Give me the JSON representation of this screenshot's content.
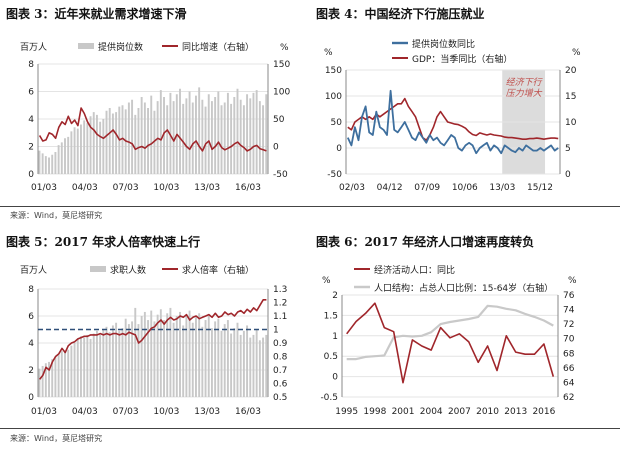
{
  "source_top": "来源：Wind，莫尼塔研究",
  "source_bottom": "来源：Wind，莫尼塔研究",
  "chart_data": [
    {
      "id": "c3",
      "type": "bar+line",
      "title": "图表 3：近年来就业需求增速下滑",
      "left_unit": "百万人",
      "right_unit": "%",
      "legend": [
        "提供岗位数",
        "同比增速（右轴）"
      ],
      "x_ticks": [
        "01/03",
        "04/03",
        "07/03",
        "10/03",
        "13/03",
        "16/03"
      ],
      "ylim_left": [
        0,
        8
      ],
      "yticks_left": [
        0,
        2,
        4,
        6,
        8
      ],
      "ylim_right": [
        -50,
        150
      ],
      "yticks_right": [
        -50,
        0,
        50,
        100,
        150
      ],
      "series": [
        {
          "name": "提供岗位数",
          "axis": "left",
          "kind": "bar",
          "values": [
            1.7,
            1.5,
            1.3,
            1.2,
            1.4,
            1.6,
            2.1,
            2.3,
            2.6,
            2.7,
            3.1,
            3.4,
            3.3,
            3.6,
            3.9,
            3.7,
            4.2,
            4.5,
            4.3,
            3.8,
            4.0,
            4.6,
            4.8,
            4.4,
            4.5,
            4.9,
            5.0,
            4.7,
            5.2,
            5.4,
            4.3,
            4.8,
            5.6,
            5.2,
            4.8,
            5.7,
            4.6,
            5.3,
            6.1,
            5.6,
            5.0,
            5.9,
            5.3,
            5.8,
            6.2,
            5.1,
            5.5,
            6.0,
            5.2,
            5.7,
            6.3,
            5.4,
            4.9,
            5.8,
            5.3,
            5.6,
            6.0,
            5.0,
            5.2,
            5.9,
            5.1,
            5.6,
            6.2,
            5.4,
            5.0,
            5.8,
            5.5,
            5.9,
            6.1,
            5.3,
            5.0,
            5.8
          ]
        },
        {
          "name": "同比增速（右轴）",
          "axis": "right",
          "kind": "line",
          "values": [
            20,
            10,
            12,
            25,
            22,
            15,
            35,
            45,
            40,
            55,
            42,
            48,
            38,
            70,
            60,
            45,
            35,
            30,
            22,
            18,
            15,
            20,
            25,
            30,
            22,
            12,
            15,
            10,
            8,
            5,
            -5,
            -2,
            0,
            -3,
            2,
            5,
            10,
            15,
            12,
            25,
            30,
            20,
            10,
            22,
            15,
            8,
            0,
            -5,
            5,
            10,
            0,
            -8,
            5,
            10,
            -5,
            0,
            8,
            -2,
            -6,
            -3,
            0,
            5,
            8,
            2,
            -2,
            -8,
            -5,
            0,
            2,
            -4,
            -6,
            -8
          ]
        }
      ]
    },
    {
      "id": "c4",
      "type": "line",
      "title": "图表 4：中国经济下行施压就业",
      "left_unit": "%",
      "right_unit": "%",
      "legend": [
        "提供岗位数同比",
        "GDP：当季同比（右轴）"
      ],
      "annotation": "经济下行\n压力增大",
      "x_ticks": [
        "02/03",
        "04/12",
        "07/09",
        "10/06",
        "13/03",
        "15/12"
      ],
      "ylim_left": [
        -50,
        150
      ],
      "yticks_left": [
        -50,
        0,
        50,
        100,
        150
      ],
      "ylim_right": [
        0,
        20
      ],
      "yticks_right": [
        0,
        5,
        10,
        15,
        20
      ],
      "series": [
        {
          "name": "提供岗位数同比",
          "axis": "left",
          "kind": "line",
          "values": [
            20,
            5,
            40,
            15,
            60,
            80,
            30,
            25,
            70,
            40,
            35,
            25,
            110,
            35,
            30,
            40,
            50,
            35,
            20,
            15,
            30,
            20,
            10,
            25,
            15,
            20,
            10,
            5,
            15,
            25,
            20,
            0,
            -5,
            5,
            10,
            5,
            -10,
            0,
            5,
            10,
            -5,
            5,
            0,
            -10,
            5,
            0,
            -5,
            -8,
            0,
            -5,
            5,
            0,
            -5,
            -5,
            0,
            -5,
            0,
            5,
            -5,
            0
          ]
        },
        {
          "name": "GDP：当季同比（右轴）",
          "axis": "right",
          "kind": "line",
          "values": [
            9,
            8.5,
            10,
            10.5,
            11,
            10.5,
            11,
            10.5,
            11.5,
            11,
            11.5,
            12,
            12.5,
            13,
            13.5,
            13.5,
            14.5,
            13,
            12,
            11,
            9,
            7,
            6.5,
            7.5,
            9,
            11,
            12,
            11,
            10,
            9.8,
            9.6,
            9.5,
            9.2,
            8.8,
            8.1,
            7.6,
            7.4,
            7.9,
            7.7,
            7.5,
            7.7,
            7.5,
            7.4,
            7.3,
            7.1,
            7.0,
            7.0,
            6.9,
            6.8,
            6.7,
            6.7,
            6.8,
            6.8,
            6.9,
            6.8,
            6.7,
            6.8,
            6.9,
            6.9,
            6.8
          ]
        }
      ]
    },
    {
      "id": "c5",
      "type": "bar+line",
      "title": "图表 5：2017 年求人倍率快速上行",
      "left_unit": "百万人",
      "legend": [
        "求职人数",
        "求人倍率（右轴）"
      ],
      "x_ticks": [
        "01/03",
        "04/03",
        "07/03",
        "10/03",
        "13/03",
        "16/03"
      ],
      "ylim_left": [
        0,
        8
      ],
      "yticks_left": [
        0,
        2,
        4,
        6,
        8
      ],
      "ylim_right": [
        0.5,
        1.3
      ],
      "yticks_right": [
        0.5,
        0.6,
        0.7,
        0.8,
        0.9,
        1.0,
        1.1,
        1.2,
        1.3
      ],
      "reference_line": 1.0,
      "series": [
        {
          "name": "求职人数",
          "axis": "left",
          "kind": "bar",
          "values": [
            2.1,
            2.3,
            2.5,
            2.6,
            2.8,
            3.0,
            3.2,
            3.4,
            3.3,
            3.5,
            3.8,
            4.0,
            4.3,
            4.5,
            4.4,
            4.6,
            4.3,
            4.7,
            4.9,
            4.6,
            5.0,
            5.2,
            4.8,
            5.3,
            5.5,
            4.9,
            5.1,
            5.8,
            5.4,
            5.6,
            6.6,
            5.4,
            6.0,
            6.3,
            5.7,
            6.4,
            5.6,
            6.1,
            6.5,
            5.7,
            6.2,
            6.6,
            5.5,
            6.0,
            6.3,
            5.3,
            6.1,
            6.4,
            5.5,
            5.9,
            6.2,
            5.2,
            5.7,
            6.0,
            5.1,
            5.6,
            5.8,
            4.9,
            5.4,
            5.7,
            4.7,
            5.1,
            5.5,
            4.6,
            4.9,
            5.3,
            4.4,
            4.6,
            5.0,
            4.2,
            4.4,
            4.6
          ]
        },
        {
          "name": "求人倍率（右轴）",
          "axis": "right",
          "kind": "line",
          "values": [
            0.63,
            0.66,
            0.72,
            0.7,
            0.76,
            0.8,
            0.82,
            0.86,
            0.83,
            0.88,
            0.9,
            0.91,
            0.93,
            0.94,
            0.95,
            0.95,
            0.96,
            0.96,
            0.96,
            0.97,
            0.96,
            0.97,
            0.96,
            0.97,
            0.97,
            0.96,
            0.97,
            0.96,
            0.98,
            0.97,
            0.96,
            0.9,
            0.92,
            0.95,
            0.98,
            1.01,
            1.02,
            1.05,
            1.07,
            1.04,
            1.07,
            1.09,
            1.07,
            1.08,
            1.1,
            1.09,
            1.11,
            1.07,
            1.09,
            1.1,
            1.08,
            1.09,
            1.1,
            1.11,
            1.09,
            1.12,
            1.09,
            1.1,
            1.13,
            1.11,
            1.12,
            1.1,
            1.13,
            1.14,
            1.12,
            1.15,
            1.13,
            1.16,
            1.14,
            1.18,
            1.22,
            1.22
          ]
        }
      ]
    },
    {
      "id": "c6",
      "type": "line",
      "title": "图表 6：2017 年经济人口增速再度转负",
      "left_unit": "%",
      "right_unit": "%",
      "legend": [
        "经济活动人口：同比",
        "人口结构：占总人口比例：15-64岁（右轴）"
      ],
      "x": [
        1995,
        1996,
        1997,
        1998,
        1999,
        2000,
        2001,
        2002,
        2003,
        2004,
        2005,
        2006,
        2007,
        2008,
        2009,
        2010,
        2011,
        2012,
        2013,
        2014,
        2015,
        2016,
        2017
      ],
      "x_ticks": [
        "1995",
        "1998",
        "2001",
        "2004",
        "2007",
        "2010",
        "2013",
        "2016"
      ],
      "ylim_left": [
        -0.5,
        2
      ],
      "yticks_left": [
        -0.5,
        0,
        0.5,
        1,
        1.5,
        2
      ],
      "ylim_right": [
        62,
        76
      ],
      "yticks_right": [
        62,
        64,
        66,
        68,
        70,
        72,
        74,
        76
      ],
      "series": [
        {
          "name": "经济活动人口：同比",
          "axis": "left",
          "kind": "line",
          "values": [
            1.05,
            1.35,
            1.55,
            1.8,
            1.2,
            1.1,
            -0.15,
            0.9,
            0.75,
            0.65,
            1.2,
            0.95,
            1.05,
            0.85,
            0.35,
            0.75,
            0.15,
            1.0,
            0.6,
            0.55,
            0.55,
            0.8,
            0.0
          ]
        },
        {
          "name": "人口结构：占总人口比例：15-64岁（右轴）",
          "axis": "right",
          "kind": "line",
          "values": [
            67.2,
            67.2,
            67.5,
            67.6,
            67.7,
            70.2,
            70.4,
            70.3,
            70.4,
            70.9,
            72.0,
            72.3,
            72.5,
            72.7,
            73.0,
            74.5,
            74.4,
            74.1,
            73.9,
            73.4,
            73.0,
            72.5,
            71.8
          ]
        }
      ]
    }
  ],
  "colors": {
    "bar": "#c8c8c8",
    "red": "#a0262b",
    "blue": "#3e6f9e",
    "lightgray": "#c9c9c9",
    "navy": "#2f4f78",
    "shade": "#dcdcdc",
    "annot": "#c0504d"
  }
}
